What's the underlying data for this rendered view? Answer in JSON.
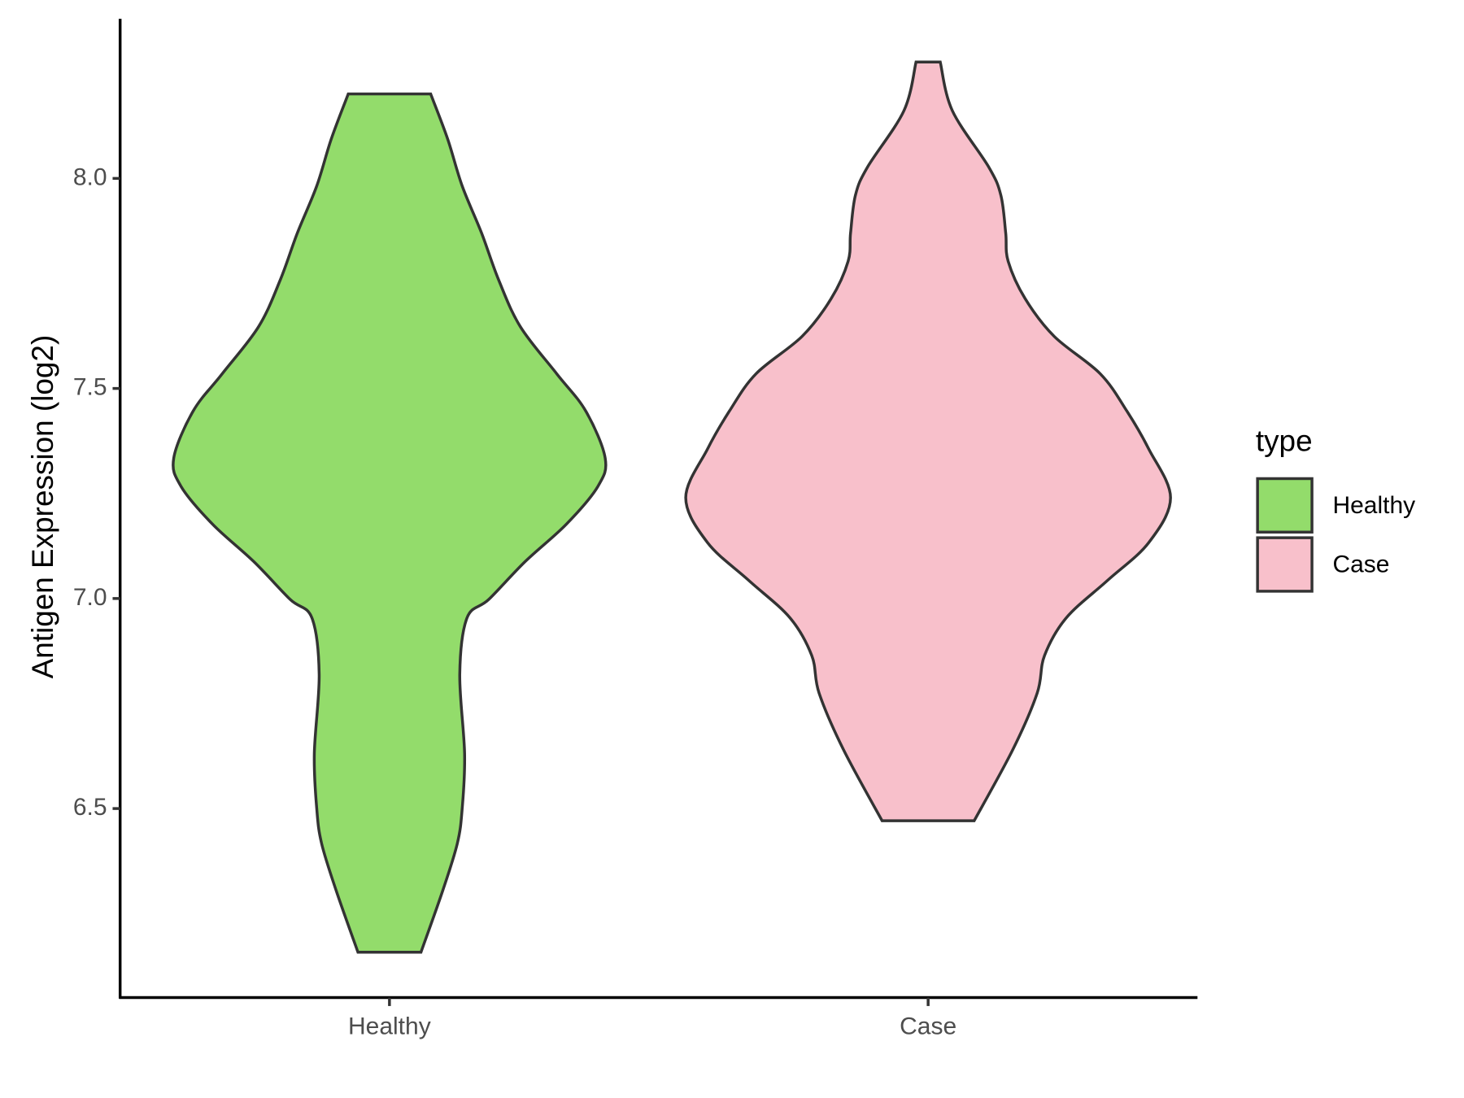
{
  "chart_data": {
    "type": "violin",
    "y_label": "Antigen Expression (log2)",
    "categories": [
      "Healthy",
      "Case"
    ],
    "legend_title": "type",
    "legend": "right",
    "ylim": [
      6.05,
      8.38
    ],
    "yticks": [
      6.5,
      {
        "value": 7,
        "label": "7.0"
      },
      7.5,
      {
        "value": 8,
        "label": "8.0"
      }
    ],
    "series": [
      {
        "name": "Healthy",
        "color": "#93DC6B",
        "y": [
          6.158,
          6.305,
          6.417,
          6.5,
          6.63,
          6.82,
          6.954,
          6.998,
          7.088,
          7.177,
          7.267,
          7.334,
          7.446,
          7.535,
          7.647,
          7.759,
          7.87,
          7.982,
          8.094,
          8.201
        ],
        "width": [
          0.13,
          0.22,
          0.28,
          0.3,
          0.31,
          0.29,
          0.32,
          0.41,
          0.56,
          0.73,
          0.86,
          0.89,
          0.81,
          0.69,
          0.54,
          0.45,
          0.38,
          0.3,
          0.24,
          0.17
        ]
      },
      {
        "name": "Case",
        "color": "#F8C0CB",
        "y": [
          6.471,
          6.641,
          6.775,
          6.864,
          6.954,
          7.043,
          7.133,
          7.24,
          7.356,
          7.446,
          7.535,
          7.624,
          7.714,
          7.803,
          7.87,
          7.96,
          8.027,
          8.161,
          8.277
        ],
        "width": [
          0.19,
          0.35,
          0.45,
          0.48,
          0.57,
          0.74,
          0.91,
          1.0,
          0.91,
          0.82,
          0.71,
          0.52,
          0.4,
          0.33,
          0.32,
          0.3,
          0.25,
          0.1,
          0.05
        ]
      }
    ]
  }
}
